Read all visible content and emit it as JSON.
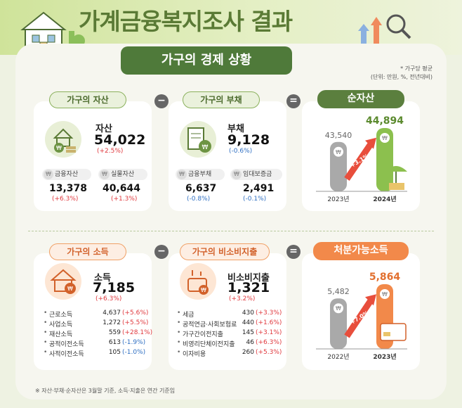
{
  "title": "가계금융복지조사 결과",
  "section_title": "가구의 경제 상황",
  "notes": {
    "avg": "* 가구당 평균",
    "unit": "(단위: 만원, %, 전년대비)"
  },
  "operators": {
    "minus": "−",
    "equals": "="
  },
  "coin_symbol": "₩",
  "assets": {
    "pill": "가구의 자산",
    "label": "자산",
    "value": "54,022",
    "change": "(+2.5%)",
    "sub": [
      {
        "label": "금융자산",
        "value": "13,378",
        "change": "(+6.3%)"
      },
      {
        "label": "실물자산",
        "value": "40,644",
        "change": "(+1.3%)"
      }
    ]
  },
  "debt": {
    "pill": "가구의 부채",
    "label": "부채",
    "value": "9,128",
    "change": "(-0.6%)",
    "sub": [
      {
        "label": "금융부채",
        "value": "6,637",
        "change": "(-0.8%)"
      },
      {
        "label": "임대보증금",
        "value": "2,491",
        "change": "(-0.1%)"
      }
    ]
  },
  "net_assets": {
    "pill": "순자산",
    "chart_data": {
      "type": "bar",
      "categories": [
        "2023년",
        "2024년"
      ],
      "values": [
        43540,
        44894
      ],
      "value_labels": [
        "43,540",
        "44,894"
      ],
      "annotation": "+3.1%"
    }
  },
  "income": {
    "pill": "가구의 소득",
    "label": "소득",
    "value": "7,185",
    "change": "(+6.3%)",
    "rows": [
      {
        "label": "근로소득",
        "value": "4,637",
        "change": "(+5.6%)"
      },
      {
        "label": "사업소득",
        "value": "1,272",
        "change": "(+5.5%)"
      },
      {
        "label": "재산소득",
        "value": "559",
        "change": "(+28.1%)"
      },
      {
        "label": "공적이전소득",
        "value": "613",
        "change": "(-1.9%)"
      },
      {
        "label": "사적이전소득",
        "value": "105",
        "change": "(-1.0%)"
      }
    ]
  },
  "nonconsumption": {
    "pill": "가구의 비소비지출",
    "label": "비소비지출",
    "value": "1,321",
    "change": "(+3.2%)",
    "rows": [
      {
        "label": "세금",
        "value": "430",
        "change": "(+3.3%)"
      },
      {
        "label": "공적연금·사회보험료",
        "value": "440",
        "change": "(+1.6%)"
      },
      {
        "label": "가구간이전지출",
        "value": "145",
        "change": "(+3.1%)"
      },
      {
        "label": "비영리단체이전지출",
        "value": "46",
        "change": "(+6.3%)"
      },
      {
        "label": "이자비용",
        "value": "260",
        "change": "(+5.3%)"
      }
    ]
  },
  "disposable": {
    "pill": "처분가능소득",
    "chart_data": {
      "type": "bar",
      "categories": [
        "2022년",
        "2023년"
      ],
      "values": [
        5482,
        5864
      ],
      "value_labels": [
        "5,482",
        "5,864"
      ],
      "annotation": "+7.0%"
    }
  },
  "footnote": "※ 자산·부채·순자산은 3월말 기준, 소득·지출은 연간 기준임"
}
